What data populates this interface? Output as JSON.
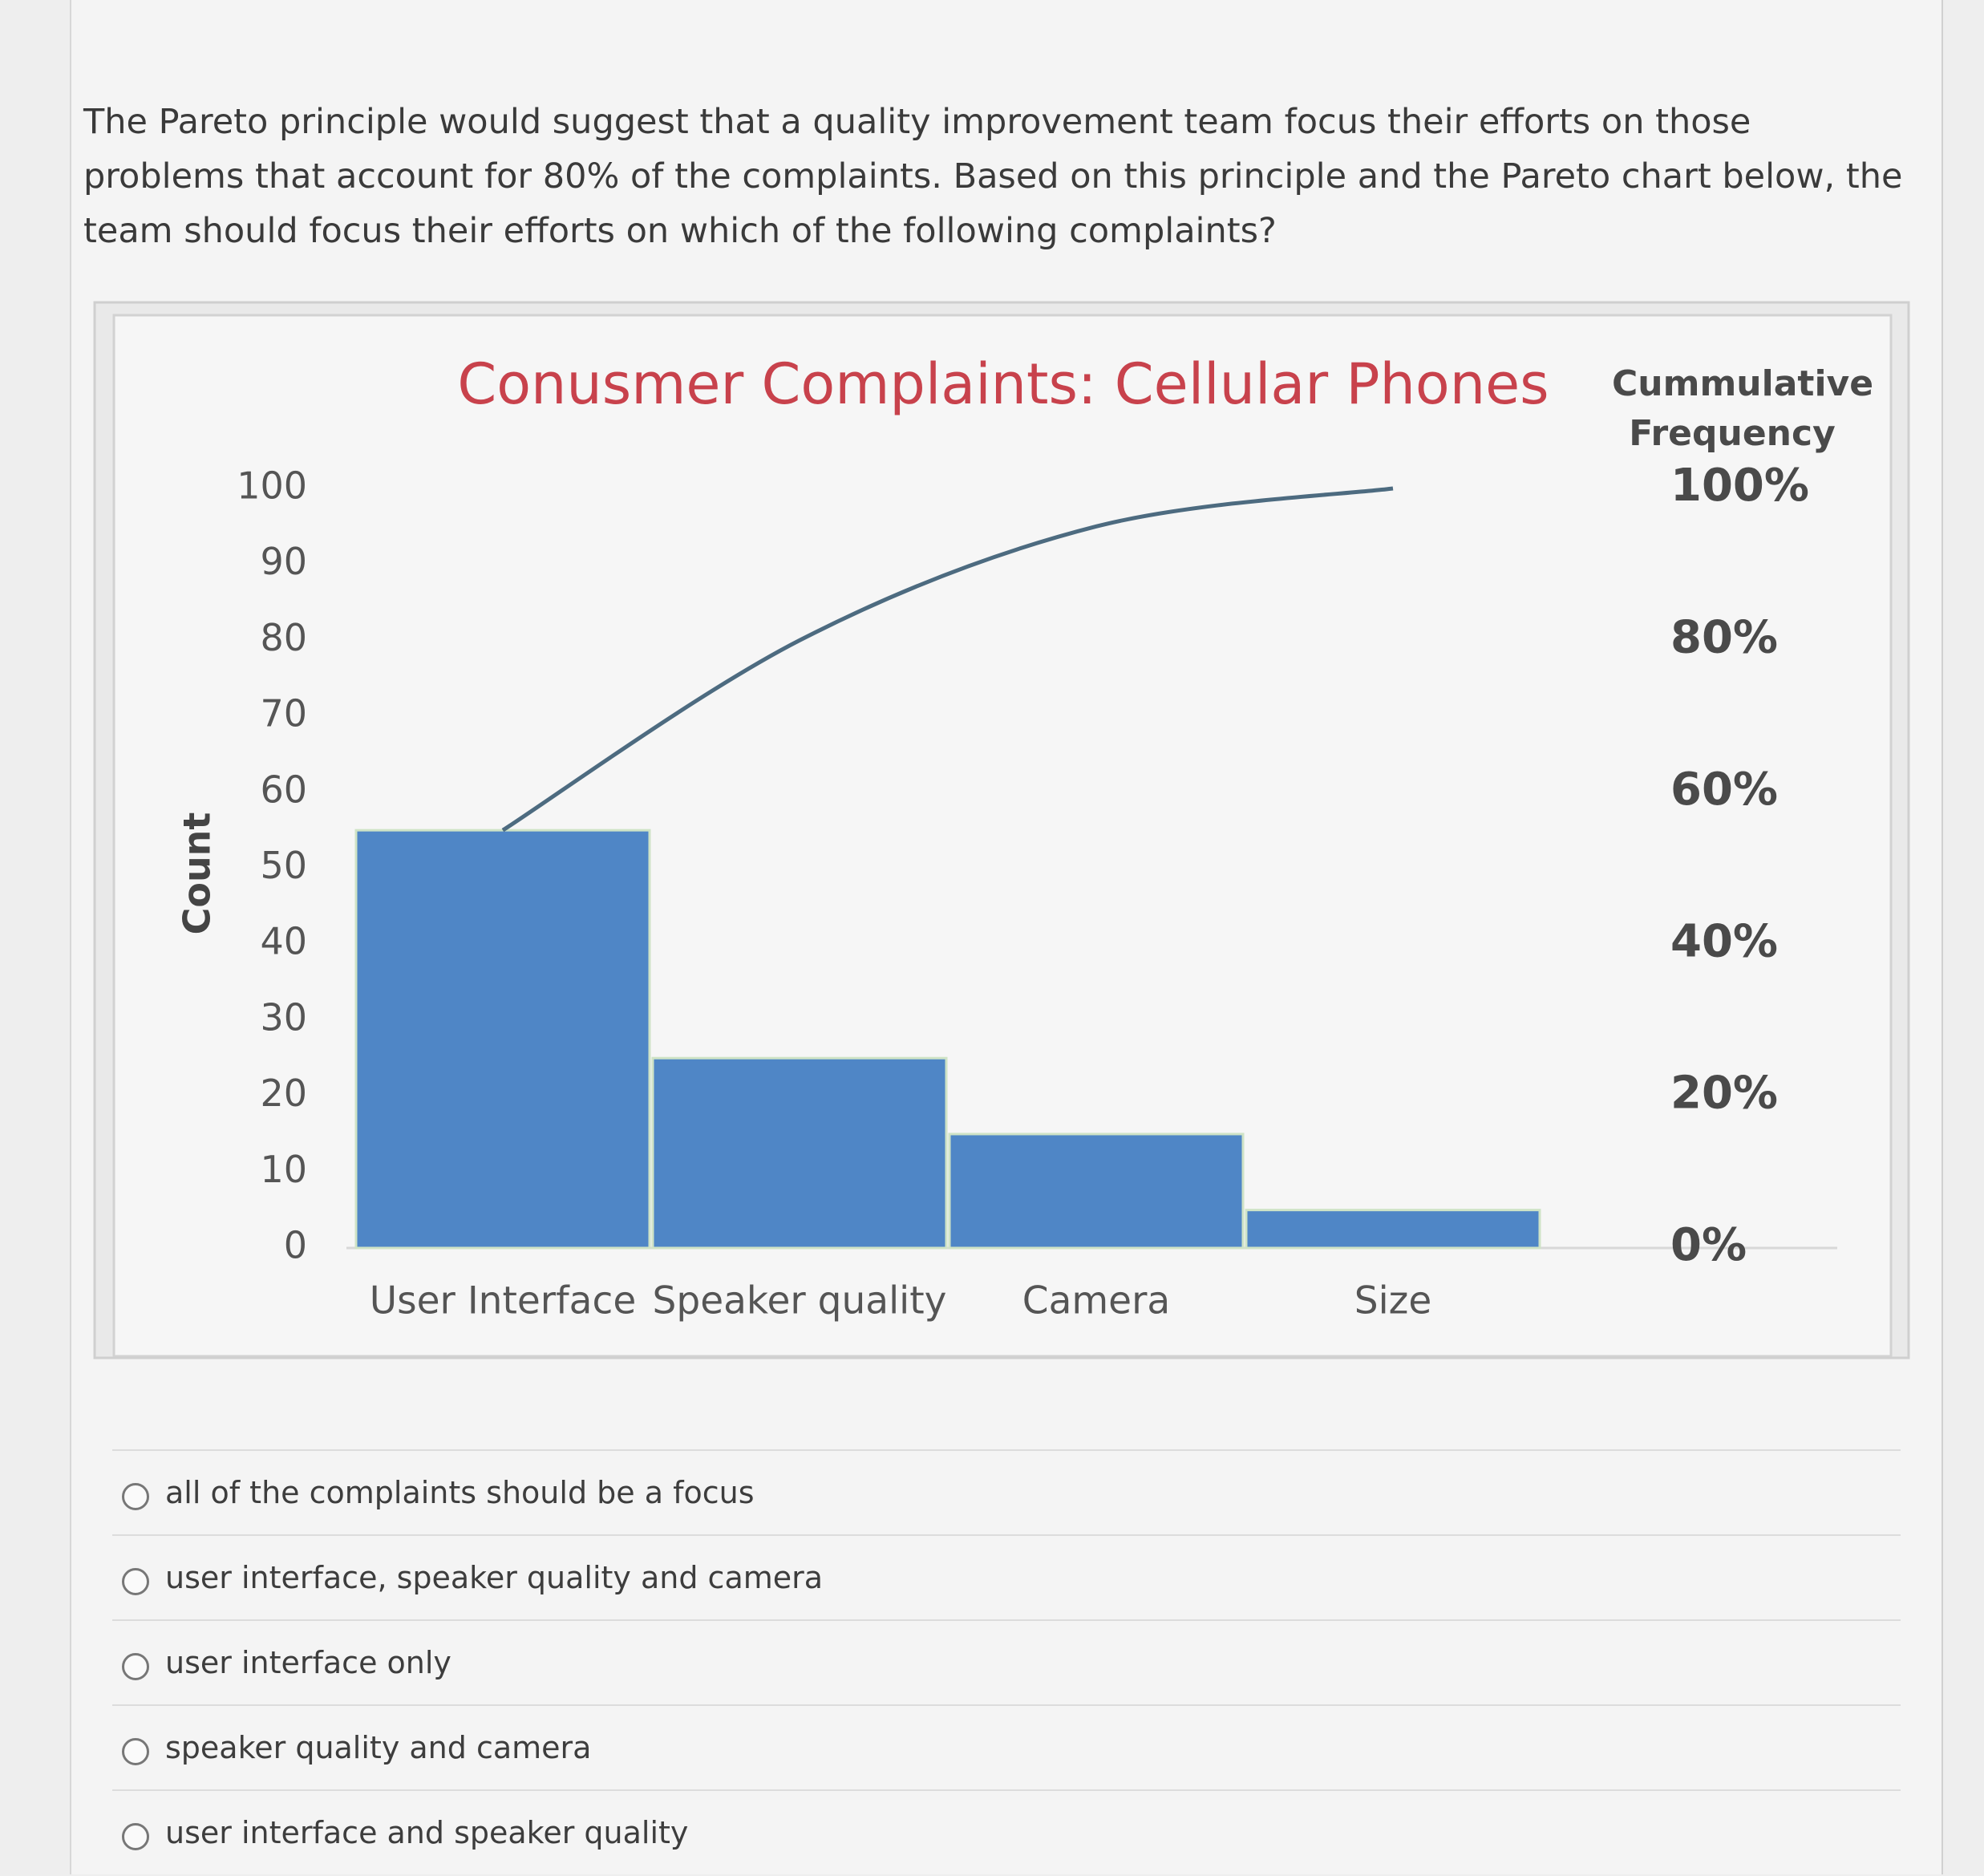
{
  "question": "The Pareto principle would suggest that a quality improvement team focus their efforts on those problems that account for 80% of the complaints.  Based on this principle and the Pareto chart below, the team should focus their efforts on which of the following complaints?",
  "chart_data": {
    "type": "pareto",
    "title": "Conusmer Complaints: Cellular Phones",
    "y_label": "Count",
    "y2_label": "Cummulative Frequency",
    "categories": [
      "User Interface",
      "Speaker quality",
      "Camera",
      "Size"
    ],
    "values": [
      55,
      25,
      15,
      5
    ],
    "color": "#4f86c6",
    "cumulative_values": [
      55,
      80,
      95,
      100
    ],
    "line_color": "#4d6b80",
    "axis": "y2",
    "ylim": [
      0,
      100
    ],
    "yticks": [
      0,
      10,
      20,
      30,
      40,
      50,
      60,
      70,
      80,
      90,
      100
    ],
    "y2lim": [
      0,
      100
    ],
    "y2ticks": [
      {
        "value": 0,
        "label": "0%"
      },
      {
        "value": 20,
        "label": "20%"
      },
      {
        "value": 40,
        "label": "40%"
      },
      {
        "value": 60,
        "label": "60%"
      },
      {
        "value": 80,
        "label": "80%"
      },
      {
        "value": 100,
        "label": "100%"
      }
    ]
  },
  "options": [
    "all of the complaints should be a focus",
    "user interface, speaker quality and camera",
    "user interface only",
    "speaker quality and camera",
    "user interface and speaker quality"
  ]
}
